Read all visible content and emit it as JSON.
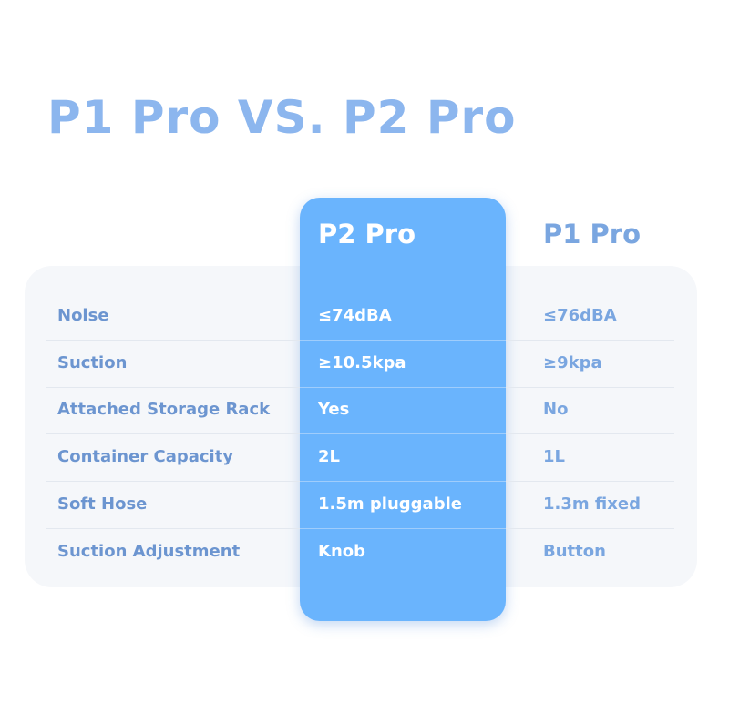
{
  "title": "P1 Pro VS. P2 Pro",
  "colors": {
    "accent_column": "#6ab4fd",
    "title": "#8cb6ee",
    "label": "#6c95d0",
    "panel": "#f5f7fa"
  },
  "columns": {
    "highlight": "P2 Pro",
    "other": "P1 Pro"
  },
  "rows": [
    {
      "feature": "Noise",
      "p2": "≤74dBA",
      "p1": "≤76dBA"
    },
    {
      "feature": "Suction",
      "p2": " ≥10.5kpa",
      "p1": "≥9kpa"
    },
    {
      "feature": "Attached Storage Rack",
      "p2": "Yes",
      "p1": "No"
    },
    {
      "feature": "Container Capacity",
      "p2": "2L",
      "p1": "1L"
    },
    {
      "feature": "Soft Hose",
      "p2": "1.5m pluggable",
      "p1": "1.3m fixed"
    },
    {
      "feature": "Suction Adjustment",
      "p2": "Knob",
      "p1": "Button"
    }
  ]
}
